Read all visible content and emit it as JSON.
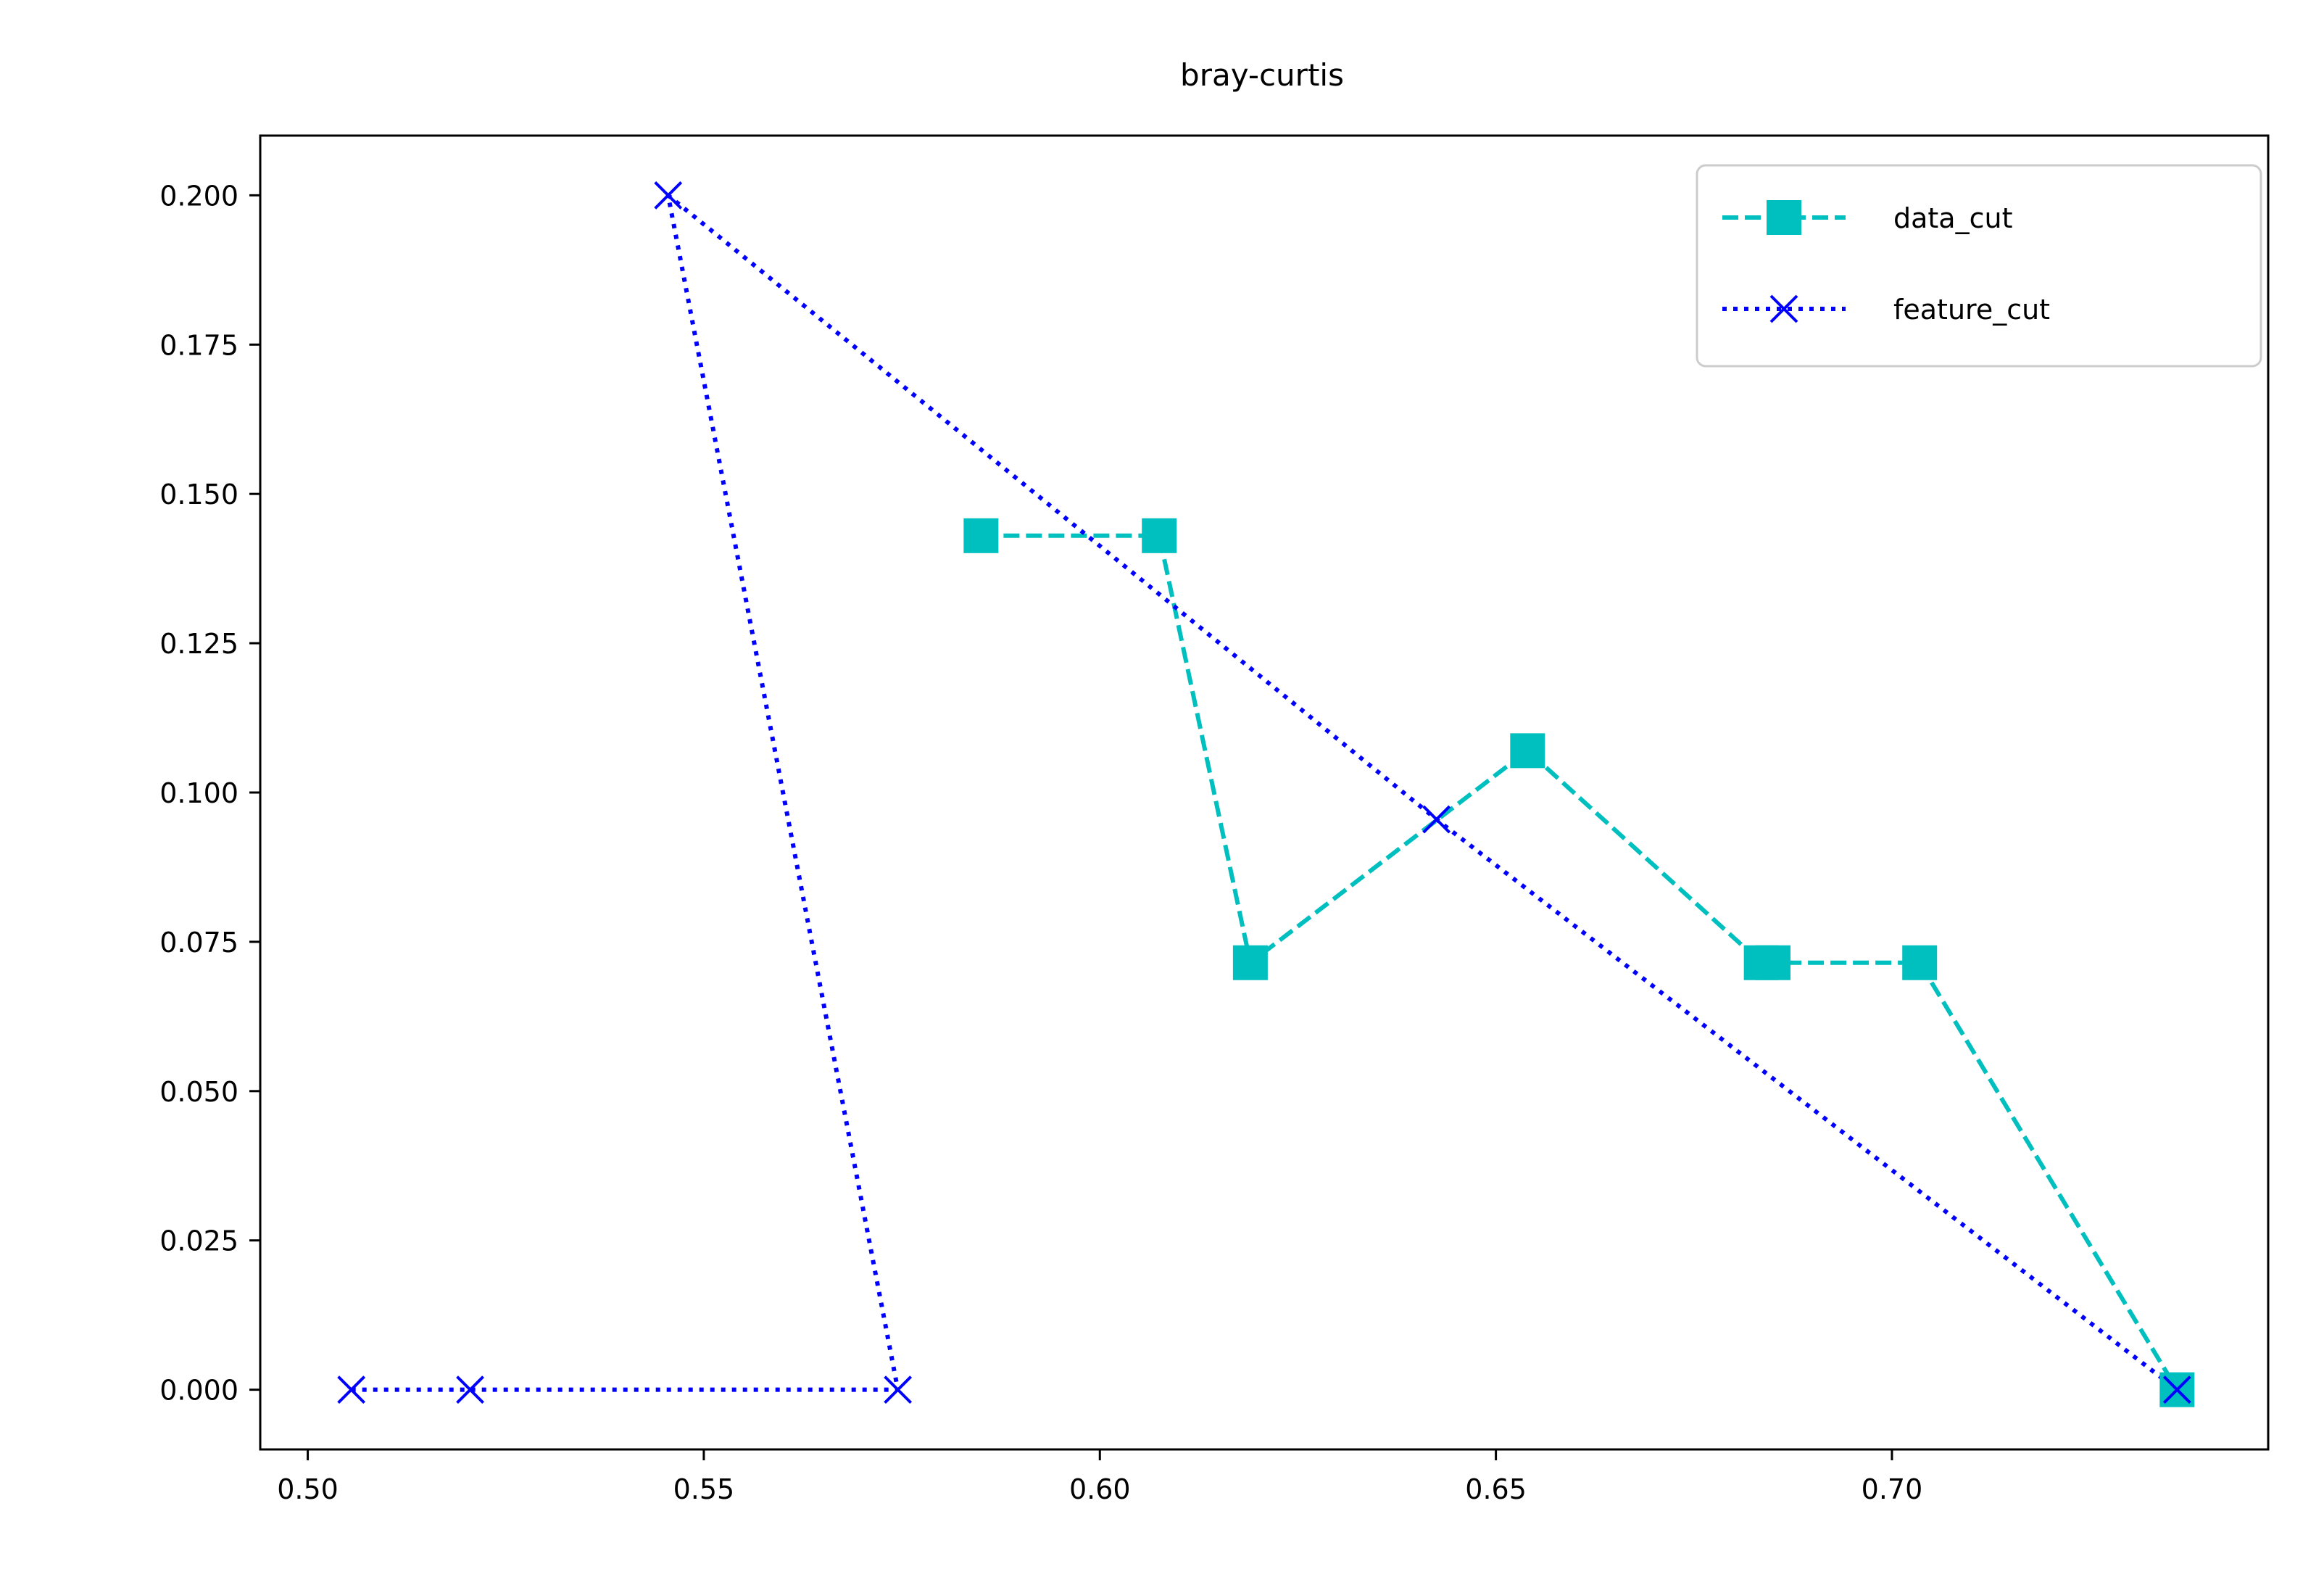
{
  "chart_data": {
    "type": "line",
    "title": "bray-curtis",
    "xlabel": "",
    "ylabel": "",
    "xlim": [
      0.494,
      0.7475
    ],
    "ylim": [
      -0.01,
      0.21
    ],
    "xticks": [
      "0.50",
      "0.55",
      "0.60",
      "0.65",
      "0.70"
    ],
    "xtick_values": [
      0.5,
      0.55,
      0.6,
      0.65,
      0.7
    ],
    "yticks": [
      "0.000",
      "0.025",
      "0.050",
      "0.075",
      "0.100",
      "0.125",
      "0.150",
      "0.175",
      "0.200"
    ],
    "ytick_values": [
      0.0,
      0.025,
      0.05,
      0.075,
      0.1,
      0.125,
      0.15,
      0.175,
      0.2
    ],
    "grid": false,
    "legend_position": "top-right",
    "series": [
      {
        "name": "data_cut",
        "color": "#00bfbf",
        "linestyle": "dashed",
        "marker": "square",
        "x": [
          0.585,
          0.6075,
          0.619,
          0.654,
          0.6835,
          0.685,
          0.7035,
          0.736
        ],
        "y": [
          0.143,
          0.143,
          0.0715,
          0.107,
          0.0715,
          0.0715,
          0.0715,
          0.0
        ]
      },
      {
        "name": "feature_cut",
        "color": "#0000ff",
        "linestyle": "dotted",
        "marker": "x",
        "x": [
          0.5055,
          0.5205,
          0.5745,
          0.5455,
          0.6425,
          0.736
        ],
        "y": [
          0.0,
          0.0,
          0.0,
          0.2,
          0.0955,
          0.0
        ]
      }
    ]
  }
}
